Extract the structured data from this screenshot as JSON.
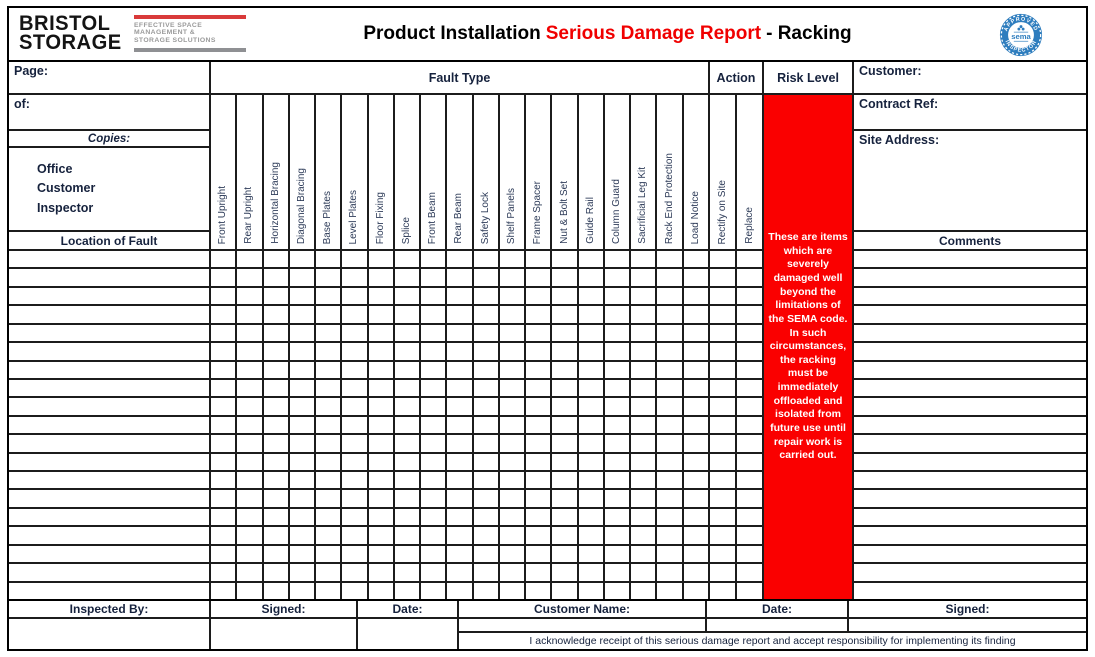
{
  "masthead": {
    "brand": {
      "line1": "BRISTOL",
      "line2": "STORAGE",
      "tagline": [
        "EFFECTIVE SPACE",
        "MANAGEMENT &",
        "STORAGE SOLUTIONS"
      ]
    },
    "title": {
      "part1": "Product Installation",
      "part2": "Serious Damage Report",
      "part3": "- Racking",
      "accent_color": "#F00000"
    },
    "sema_badge": {
      "arc_top": "APPROVED",
      "name": "sema",
      "arc_bottom": "INSPECTOR",
      "color": "#2E7DBE"
    }
  },
  "left_panel": {
    "page_label": "Page:",
    "of_label": "of:",
    "copies_label": "Copies:",
    "copies_items": [
      "Office",
      "Customer",
      "Inspector"
    ],
    "location_header": "Location of Fault"
  },
  "fault_type": {
    "header": "Fault Type",
    "columns": [
      "Front Upright",
      "Rear Upright",
      "Horizontal Bracing",
      "Diagonal Bracing",
      "Base Plates",
      "Level Plates",
      "Floor Fixing",
      "Splice",
      "Front Beam",
      "Rear Beam",
      "Safety Lock",
      "Shelf Panels",
      "Frame Spacer",
      "Nut & Bolt Set",
      "Guide Rail",
      "Column Guard",
      "Sacrificial Leg Kit",
      "Rack End Protection",
      "Load Notice"
    ]
  },
  "action": {
    "header": "Action",
    "columns": [
      "Rectify on Site",
      "Replace"
    ]
  },
  "risk_level": {
    "header": "Risk Level",
    "color": "#FA0000",
    "note": "These are items which are severely damaged well beyond the limitations of the SEMA code. In such circumstances, the racking must be immediately offloaded and isolated from future use until repair work is carried out."
  },
  "right_panel": {
    "customer_label": "Customer:",
    "contract_ref_label": "Contract Ref:",
    "site_address_label": "Site Address:",
    "comments_header": "Comments"
  },
  "grid": {
    "data_rows": 19
  },
  "footer": {
    "inspected_by_label": "Inspected By:",
    "signed_label": "Signed:",
    "date_label": "Date:",
    "customer_name_label": "Customer Name:",
    "date2_label": "Date:",
    "signed2_label": "Signed:",
    "acknowledgment": "I acknowledge receipt of this serious damage report and accept responsibility for implementing its finding"
  }
}
